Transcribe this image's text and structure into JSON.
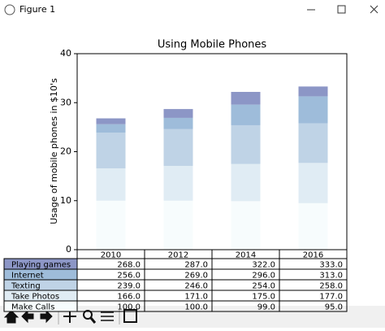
{
  "window": {
    "title": "Figure 1"
  },
  "chart_data": {
    "type": "stacked_bar",
    "title": "Using Mobile Phones",
    "y_label": "Usage of mobile phones in $10's",
    "categories": [
      "2010",
      "2012",
      "2014",
      "2016"
    ],
    "series": [
      {
        "name": "Make Calls",
        "color": "#f7fcfd",
        "values": [
          10.0,
          10.0,
          9.9,
          9.5
        ]
      },
      {
        "name": "Take Photos",
        "color": "#e0ecf4",
        "values": [
          6.6,
          7.1,
          7.6,
          8.2
        ]
      },
      {
        "name": "Texting",
        "color": "#bfd3e6",
        "values": [
          7.3,
          7.5,
          7.9,
          8.1
        ]
      },
      {
        "name": "Internet",
        "color": "#9ebcda",
        "values": [
          1.7,
          2.3,
          4.2,
          5.5
        ]
      },
      {
        "name": "Playing games",
        "color": "#8c96c6",
        "values": [
          1.2,
          1.8,
          2.6,
          2.0
        ]
      }
    ],
    "ylim": [
      0,
      40
    ],
    "yticks": [
      0,
      10,
      20,
      30,
      40
    ]
  },
  "table": {
    "cells": [
      [
        "268.0",
        "287.0",
        "322.0",
        "333.0"
      ],
      [
        "256.0",
        "269.0",
        "296.0",
        "313.0"
      ],
      [
        "239.0",
        "246.0",
        "254.0",
        "258.0"
      ],
      [
        "166.0",
        "171.0",
        "175.0",
        "177.0"
      ],
      [
        "100.0",
        "100.0",
        "99.0",
        "95.0"
      ]
    ]
  }
}
